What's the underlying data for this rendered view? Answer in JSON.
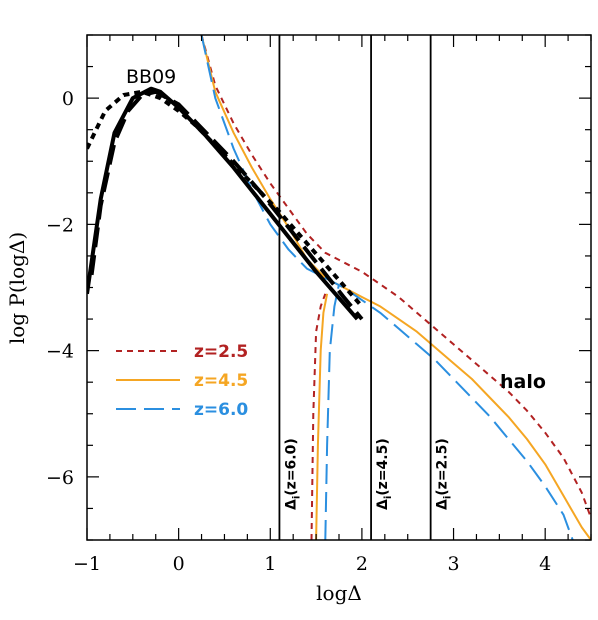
{
  "chart_data": {
    "type": "line",
    "xlabel": "logΔ",
    "ylabel": "log P(logΔ)",
    "xlim": [
      -1,
      4.5
    ],
    "ylim": [
      -7,
      1
    ],
    "x_ticks": [
      -1,
      0,
      1,
      2,
      3,
      4
    ],
    "y_ticks": [
      -6,
      -4,
      -2,
      0
    ],
    "grid": false,
    "legend_position": "middle-left",
    "annotations": {
      "bb09": "BB09",
      "halo": "halo"
    },
    "vlines": [
      {
        "x": 1.1,
        "label": "Δ",
        "sub": "i",
        "suffix": "(z=6.0)"
      },
      {
        "x": 2.1,
        "label": "Δ",
        "sub": "i",
        "suffix": "(z=4.5)"
      },
      {
        "x": 2.75,
        "label": "Δ",
        "sub": "i",
        "suffix": "(z=2.5)"
      }
    ],
    "series": [
      {
        "name": "z=2.5",
        "color": "#b22222",
        "dash": "short",
        "width": 2,
        "x": [
          0.25,
          0.4,
          0.6,
          0.8,
          1.0,
          1.2,
          1.4,
          1.6,
          1.8,
          2.0,
          2.2,
          2.4,
          2.6,
          2.8,
          3.0,
          3.2,
          3.4,
          3.6,
          3.8,
          4.0,
          4.2,
          4.4,
          4.5
        ],
        "y": [
          1.0,
          0.2,
          -0.4,
          -0.9,
          -1.35,
          -1.75,
          -2.15,
          -2.45,
          -2.6,
          -2.75,
          -2.95,
          -3.15,
          -3.4,
          -3.65,
          -3.9,
          -4.15,
          -4.4,
          -4.65,
          -4.95,
          -5.3,
          -5.7,
          -6.25,
          -6.65
        ]
      },
      {
        "name": "z=2.5 low-density branch",
        "color": "#b22222",
        "dash": "short",
        "width": 2,
        "x": [
          1.45,
          1.47,
          1.5,
          1.55,
          1.6
        ],
        "y": [
          -7.0,
          -5.0,
          -3.7,
          -3.3,
          -3.1
        ]
      },
      {
        "name": "z=4.5",
        "color": "#f5a623",
        "dash": "solid",
        "width": 2,
        "x": [
          0.25,
          0.4,
          0.6,
          0.8,
          1.0,
          1.2,
          1.4,
          1.6,
          1.8,
          2.0,
          2.2,
          2.4,
          2.6,
          2.8,
          3.0,
          3.2,
          3.4,
          3.6,
          3.8,
          4.0,
          4.2,
          4.4,
          4.5
        ],
        "y": [
          1.0,
          0.1,
          -0.55,
          -1.1,
          -1.6,
          -2.05,
          -2.55,
          -2.85,
          -3.0,
          -3.15,
          -3.3,
          -3.5,
          -3.7,
          -3.95,
          -4.2,
          -4.45,
          -4.75,
          -5.05,
          -5.4,
          -5.8,
          -6.3,
          -6.8,
          -7.0
        ]
      },
      {
        "name": "z=4.5 low-density branch",
        "color": "#f5a623",
        "dash": "solid",
        "width": 2,
        "x": [
          1.5,
          1.52,
          1.55,
          1.58,
          1.62
        ],
        "y": [
          -7.0,
          -5.5,
          -4.0,
          -3.4,
          -3.1
        ]
      },
      {
        "name": "z=6.0",
        "color": "#2b8fe0",
        "dash": "long",
        "width": 2,
        "x": [
          0.25,
          0.4,
          0.6,
          0.8,
          1.0,
          1.2,
          1.4,
          1.6,
          1.8,
          2.0,
          2.2,
          2.4,
          2.6,
          2.8,
          3.0,
          3.2,
          3.4,
          3.6,
          3.8,
          4.0,
          4.2,
          4.3
        ],
        "y": [
          1.0,
          0.0,
          -0.8,
          -1.45,
          -2.0,
          -2.4,
          -2.7,
          -2.85,
          -3.0,
          -3.2,
          -3.4,
          -3.65,
          -3.9,
          -4.15,
          -4.45,
          -4.75,
          -5.05,
          -5.4,
          -5.75,
          -6.15,
          -6.6,
          -7.0
        ]
      },
      {
        "name": "z=6.0 low-density branch",
        "color": "#2b8fe0",
        "dash": "long",
        "width": 2,
        "x": [
          1.6,
          1.62,
          1.65,
          1.7,
          1.75
        ],
        "y": [
          -7.0,
          -5.5,
          -4.0,
          -3.3,
          -2.95
        ]
      },
      {
        "name": "BB09 short-dashed",
        "color": "#000000",
        "dash": "short",
        "width": 4,
        "x": [
          -1.0,
          -0.8,
          -0.6,
          -0.4,
          -0.2,
          0.0,
          0.2,
          0.5,
          0.8,
          1.1,
          1.4,
          1.7,
          2.0
        ],
        "y": [
          -0.8,
          -0.2,
          0.05,
          0.1,
          0.0,
          -0.2,
          -0.45,
          -0.9,
          -1.35,
          -1.8,
          -2.3,
          -2.8,
          -3.3
        ]
      },
      {
        "name": "BB09 solid",
        "color": "#000000",
        "dash": "solid",
        "width": 4,
        "x": [
          -1.0,
          -0.85,
          -0.7,
          -0.5,
          -0.3,
          -0.2,
          0.0,
          0.3,
          0.6,
          0.9,
          1.2,
          1.5,
          1.8,
          1.95
        ],
        "y": [
          -3.1,
          -1.6,
          -0.55,
          0.0,
          0.15,
          0.1,
          -0.15,
          -0.6,
          -1.1,
          -1.65,
          -2.2,
          -2.75,
          -3.25,
          -3.5
        ]
      },
      {
        "name": "BB09 long-dashed",
        "color": "#000000",
        "dash": "long",
        "width": 4,
        "x": [
          -0.95,
          -0.85,
          -0.7,
          -0.55,
          -0.4,
          -0.25,
          0.0,
          0.3,
          0.6,
          0.9,
          1.2,
          1.5,
          1.8,
          2.0
        ],
        "y": [
          -2.8,
          -1.7,
          -0.7,
          -0.2,
          0.05,
          0.1,
          -0.1,
          -0.55,
          -1.0,
          -1.5,
          -2.05,
          -2.6,
          -3.15,
          -3.5
        ]
      }
    ],
    "legend": [
      {
        "label": "z=2.5",
        "color": "#b22222",
        "dash": "short"
      },
      {
        "label": "z=4.5",
        "color": "#f5a623",
        "dash": "solid"
      },
      {
        "label": "z=6.0",
        "color": "#2b8fe0",
        "dash": "long"
      }
    ]
  }
}
